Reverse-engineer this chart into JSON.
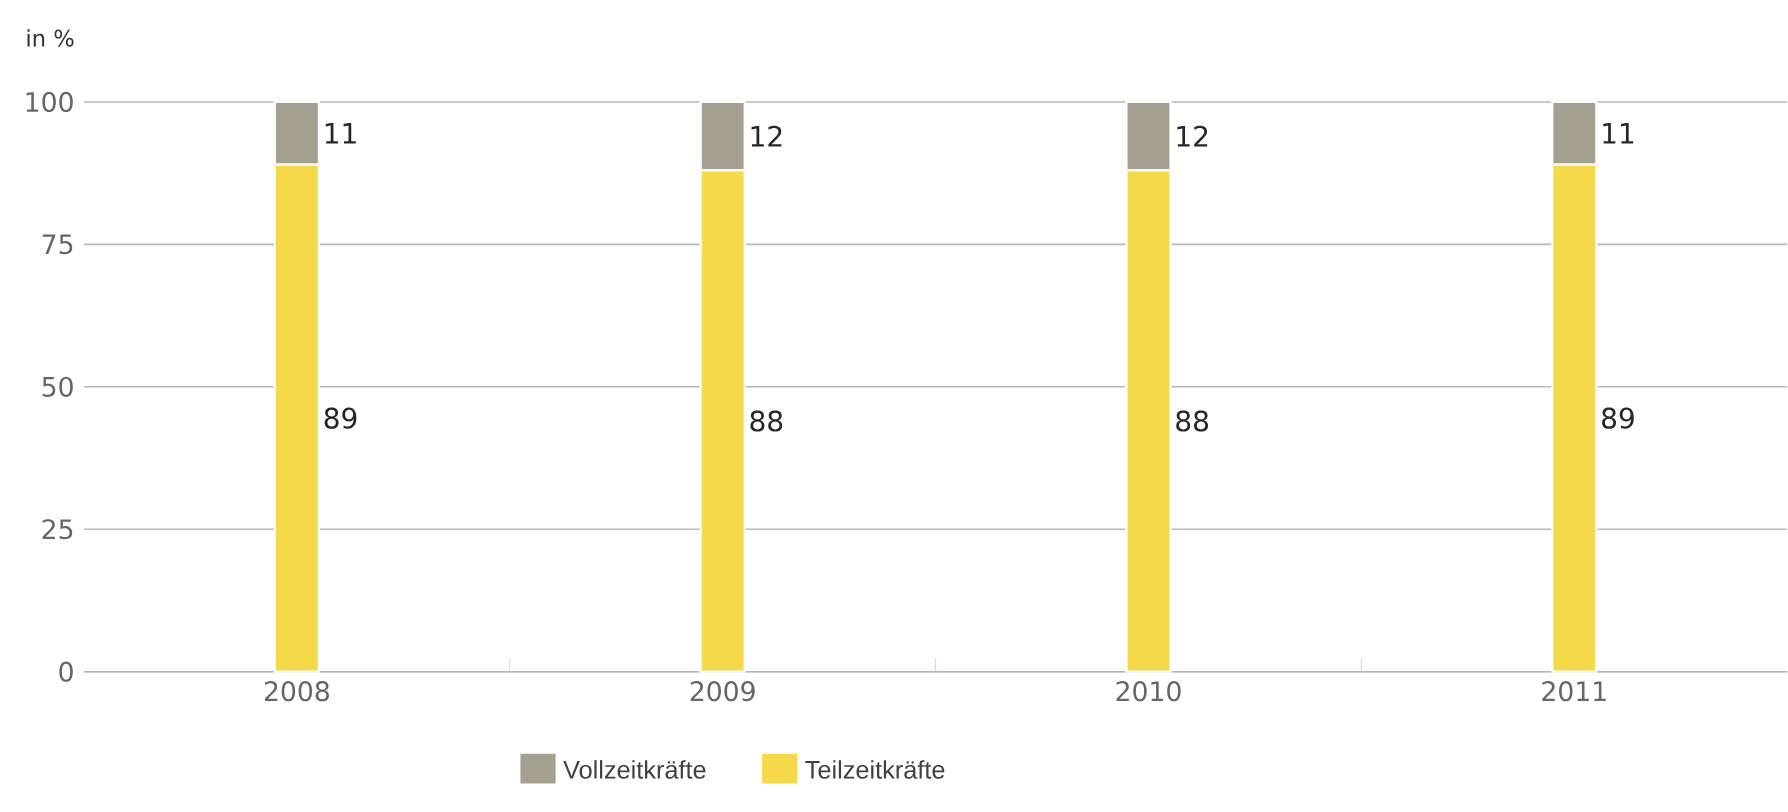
{
  "chart_data": {
    "type": "bar",
    "stacked": true,
    "ylabel": "in %",
    "categories": [
      "2008",
      "2009",
      "2010",
      "2011"
    ],
    "series": [
      {
        "name": "Teilzeitkräfte",
        "color": "#f5d94a",
        "values": [
          89,
          88,
          88,
          89
        ]
      },
      {
        "name": "Vollzeitkräfte",
        "color": "#a59f8f",
        "values": [
          11,
          12,
          12,
          11
        ]
      }
    ],
    "ylim": [
      0,
      100
    ],
    "yticks": [
      0,
      25,
      50,
      75,
      100
    ],
    "grid": "y",
    "legend": "bottom",
    "data_labels": true
  }
}
